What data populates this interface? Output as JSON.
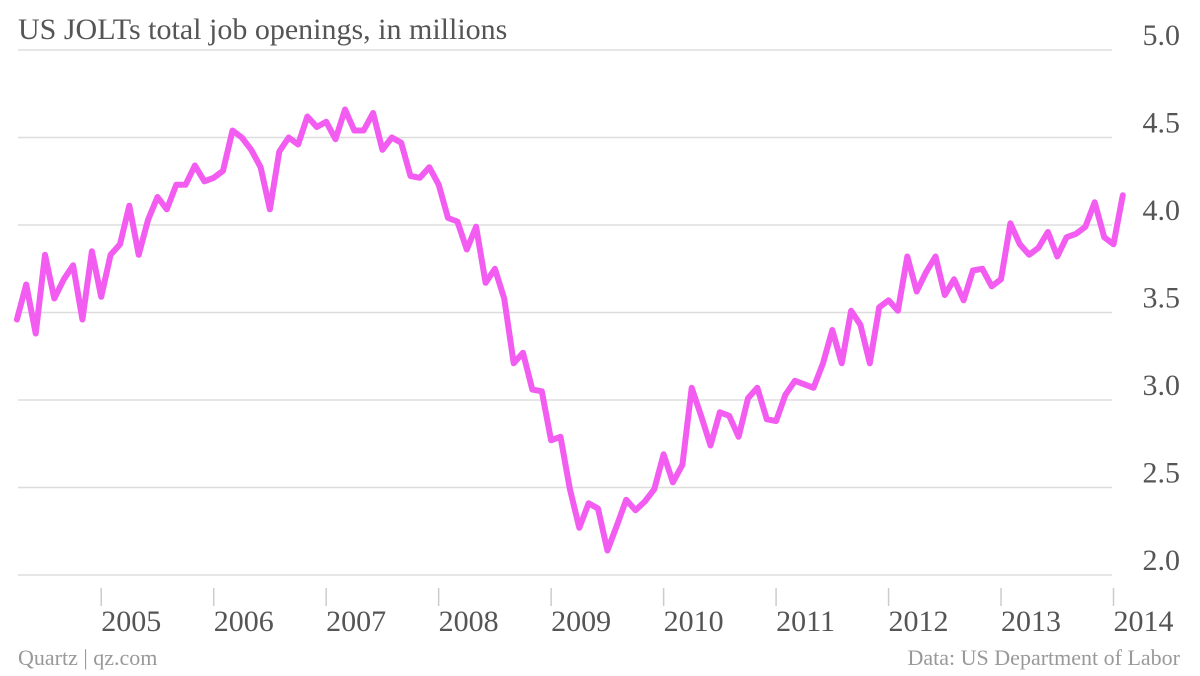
{
  "chart_data": {
    "type": "line",
    "title": "US JOLTs total job openings, in millions",
    "source": "Data: US Department of Labor",
    "credit": "Quartz | qz.com",
    "color": "#f25cf0",
    "x": [
      2004.25,
      2004.333,
      2004.417,
      2004.5,
      2004.583,
      2004.667,
      2004.75,
      2004.833,
      2004.917,
      2005,
      2005.083,
      2005.167,
      2005.25,
      2005.333,
      2005.417,
      2005.5,
      2005.583,
      2005.667,
      2005.75,
      2005.833,
      2005.917,
      2006,
      2006.083,
      2006.167,
      2006.25,
      2006.333,
      2006.417,
      2006.5,
      2006.583,
      2006.667,
      2006.75,
      2006.833,
      2006.917,
      2007,
      2007.083,
      2007.167,
      2007.25,
      2007.333,
      2007.417,
      2007.5,
      2007.583,
      2007.667,
      2007.75,
      2007.833,
      2007.917,
      2008,
      2008.083,
      2008.167,
      2008.25,
      2008.333,
      2008.417,
      2008.5,
      2008.583,
      2008.667,
      2008.75,
      2008.833,
      2008.917,
      2009,
      2009.083,
      2009.167,
      2009.25,
      2009.333,
      2009.417,
      2009.5,
      2009.583,
      2009.667,
      2009.75,
      2009.833,
      2009.917,
      2010,
      2010.083,
      2010.167,
      2010.25,
      2010.333,
      2010.417,
      2010.5,
      2010.583,
      2010.667,
      2010.75,
      2010.833,
      2010.917,
      2011,
      2011.083,
      2011.167,
      2011.25,
      2011.333,
      2011.417,
      2011.5,
      2011.583,
      2011.667,
      2011.75,
      2011.833,
      2011.917,
      2012,
      2012.083,
      2012.167,
      2012.25,
      2012.333,
      2012.417,
      2012.5,
      2012.583,
      2012.667,
      2012.75,
      2012.833,
      2012.917,
      2013,
      2013.083,
      2013.167,
      2013.25,
      2013.333,
      2013.417,
      2013.5,
      2013.583,
      2013.667,
      2013.75,
      2013.833,
      2013.917,
      2014,
      2014.083
    ],
    "values": [
      3.46,
      3.66,
      3.38,
      3.83,
      3.58,
      3.69,
      3.77,
      3.46,
      3.85,
      3.59,
      3.83,
      3.89,
      4.11,
      3.83,
      4.03,
      4.16,
      4.09,
      4.23,
      4.23,
      4.34,
      4.25,
      4.27,
      4.31,
      4.54,
      4.5,
      4.43,
      4.33,
      4.09,
      4.42,
      4.5,
      4.46,
      4.62,
      4.56,
      4.59,
      4.49,
      4.66,
      4.54,
      4.54,
      4.64,
      4.43,
      4.5,
      4.47,
      4.28,
      4.27,
      4.33,
      4.23,
      4.04,
      4.02,
      3.86,
      3.99,
      3.67,
      3.75,
      3.58,
      3.21,
      3.27,
      3.06,
      3.05,
      2.77,
      2.79,
      2.49,
      2.27,
      2.41,
      2.38,
      2.14,
      2.28,
      2.43,
      2.37,
      2.42,
      2.49,
      2.69,
      2.53,
      2.63,
      3.07,
      2.91,
      2.74,
      2.93,
      2.91,
      2.79,
      3.01,
      3.07,
      2.89,
      2.88,
      3.03,
      3.11,
      3.09,
      3.07,
      3.21,
      3.4,
      3.21,
      3.51,
      3.43,
      3.21,
      3.53,
      3.57,
      3.51,
      3.82,
      3.62,
      3.73,
      3.82,
      3.6,
      3.69,
      3.57,
      3.74,
      3.75,
      3.65,
      3.69,
      4.01,
      3.89,
      3.83,
      3.87,
      3.96,
      3.82,
      3.93,
      3.95,
      3.99,
      4.13,
      3.93,
      3.89,
      4.17
    ],
    "xlim": [
      2004.1,
      2014.6
    ],
    "xticks": [
      2005,
      2006,
      2007,
      2008,
      2009,
      2010,
      2011,
      2012,
      2013,
      2014
    ],
    "ylim": [
      2,
      5
    ],
    "yticks": [
      {
        "value": 2,
        "label": "2.0"
      },
      {
        "value": 2.5,
        "label": "2.5"
      },
      {
        "value": 3,
        "label": "3.0"
      },
      {
        "value": 3.5,
        "label": "3.5"
      },
      {
        "value": 4,
        "label": "4.0"
      },
      {
        "value": 4.5,
        "label": "4.5"
      },
      {
        "value": 5,
        "label": "5.0"
      }
    ],
    "grid": true
  }
}
